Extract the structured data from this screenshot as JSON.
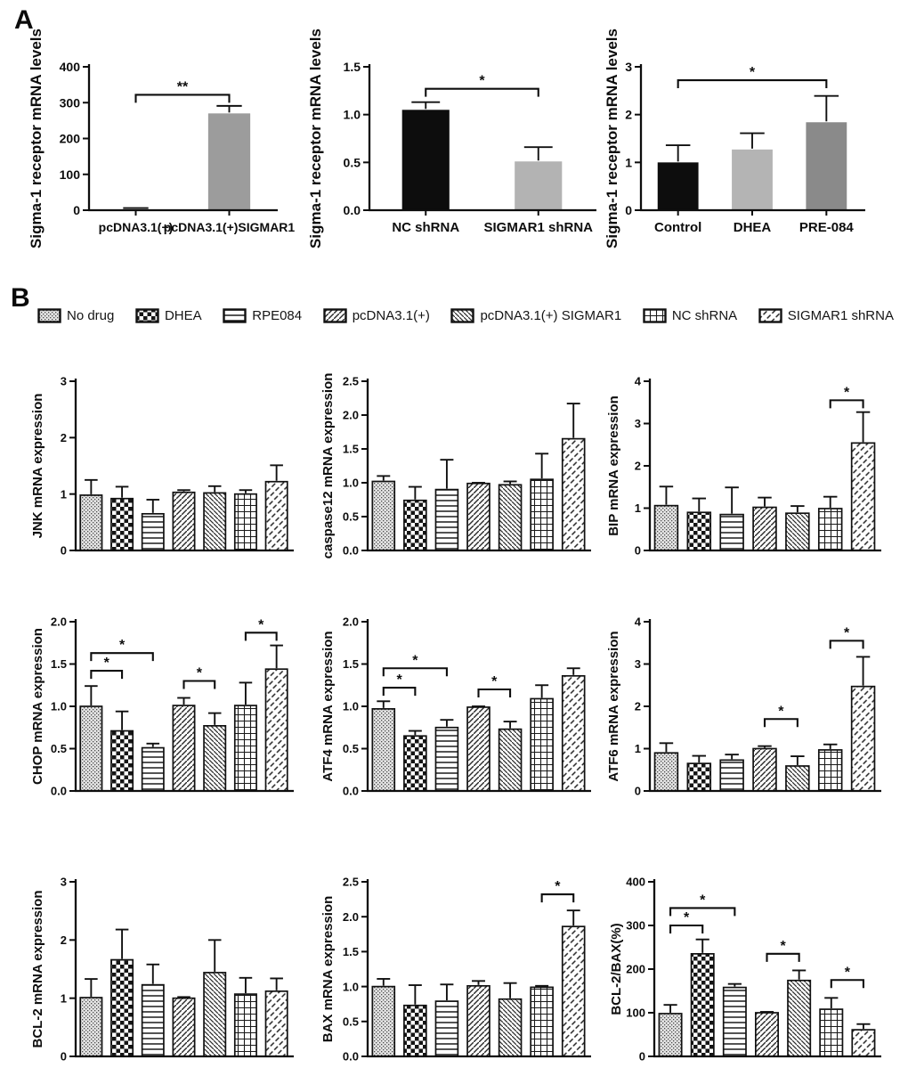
{
  "panels": {
    "a_label": "A",
    "b_label": "B"
  },
  "legend": {
    "items": [
      {
        "label": "No drug",
        "pattern": "stipple"
      },
      {
        "label": "DHEA",
        "pattern": "checker"
      },
      {
        "label": "RPE084",
        "pattern": "hlines"
      },
      {
        "label": "pcDNA3.1(+)",
        "pattern": "diagf"
      },
      {
        "label": "pcDNA3.1(+) SIGMAR1",
        "pattern": "diagb"
      },
      {
        "label": "NC shRNA",
        "pattern": "grid"
      },
      {
        "label": "SIGMAR1 shRNA",
        "pattern": "diagdash"
      }
    ]
  },
  "chart_data": [
    {
      "id": "a1",
      "panel": "A",
      "type": "bar",
      "title": "",
      "xlabel": "",
      "ylabel": "Sigma-1 receptor mRNA levels",
      "categories": [
        "pcDNA3.1(+)",
        "pcDNA3.1(+)SIGMAR1"
      ],
      "values": [
        2,
        270
      ],
      "errors": [
        4,
        21
      ],
      "fills": [
        "#141414",
        "#9c9c9c"
      ],
      "ylim": [
        0,
        400
      ],
      "yticks": [
        0,
        100,
        200,
        300,
        400
      ],
      "ytick_labels": [
        "0",
        "100",
        "200",
        "300",
        "400"
      ],
      "significance": [
        {
          "between": [
            0,
            1
          ],
          "y": 322,
          "label": "**"
        }
      ],
      "show_x_labels": true,
      "grid": false,
      "legend_position": "none"
    },
    {
      "id": "a2",
      "panel": "A",
      "type": "bar",
      "title": "",
      "xlabel": "",
      "ylabel": "Sigma-1 receptor mRNA levels",
      "categories": [
        "NC shRNA",
        "SIGMAR1 shRNA"
      ],
      "values": [
        1.05,
        0.51
      ],
      "errors": [
        0.08,
        0.15
      ],
      "fills": [
        "#0d0d0d",
        "#b3b3b3"
      ],
      "ylim": [
        0,
        1.5
      ],
      "yticks": [
        0,
        0.5,
        1.0,
        1.5
      ],
      "ytick_labels": [
        "0.0",
        "0.5",
        "1.0",
        "1.5"
      ],
      "significance": [
        {
          "between": [
            0,
            1
          ],
          "y": 1.27,
          "label": "*"
        }
      ],
      "show_x_labels": true,
      "grid": false,
      "legend_position": "none"
    },
    {
      "id": "a3",
      "panel": "A",
      "type": "bar",
      "title": "",
      "xlabel": "",
      "ylabel": "Sigma-1 receptor mRNA levels",
      "categories": [
        "Control",
        "DHEA",
        "PRE-084"
      ],
      "values": [
        1.0,
        1.27,
        1.84
      ],
      "errors": [
        0.36,
        0.34,
        0.55
      ],
      "fills": [
        "#0d0d0d",
        "#b4b4b4",
        "#8a8a8a"
      ],
      "ylim": [
        0,
        3
      ],
      "yticks": [
        0,
        1,
        2,
        3
      ],
      "ytick_labels": [
        "0",
        "1",
        "2",
        "3"
      ],
      "significance": [
        {
          "between": [
            0,
            2
          ],
          "y": 2.72,
          "label": "*"
        }
      ],
      "show_x_labels": true,
      "grid": false,
      "legend_position": "none"
    },
    {
      "id": "b1",
      "panel": "B",
      "type": "bar",
      "title": "",
      "xlabel": "",
      "ylabel": "JNK mRNA expression",
      "categories": [
        "No drug",
        "DHEA",
        "RPE084",
        "pcDNA3.1(+)",
        "pcDNA3.1(+) SIGMAR1",
        "NC shRNA",
        "SIGMAR1 shRNA"
      ],
      "values": [
        0.98,
        0.92,
        0.65,
        1.03,
        1.02,
        1.0,
        1.22
      ],
      "errors": [
        0.27,
        0.21,
        0.25,
        0.04,
        0.12,
        0.07,
        0.29
      ],
      "fills": [
        "stipple",
        "checker",
        "hlines",
        "diagf",
        "diagb",
        "grid",
        "diagdash"
      ],
      "ylim": [
        0,
        3
      ],
      "yticks": [
        0,
        1,
        2,
        3
      ],
      "ytick_labels": [
        "0",
        "1",
        "2",
        "3"
      ],
      "significance": [],
      "show_x_labels": false,
      "grid": false,
      "legend_position": "top-shared"
    },
    {
      "id": "b2",
      "panel": "B",
      "type": "bar",
      "title": "",
      "xlabel": "",
      "ylabel": "caspase12 mRNA expression",
      "categories": [
        "No drug",
        "DHEA",
        "RPE084",
        "pcDNA3.1(+)",
        "pcDNA3.1(+) SIGMAR1",
        "NC shRNA",
        "SIGMAR1 shRNA"
      ],
      "values": [
        1.02,
        0.74,
        0.9,
        0.99,
        0.97,
        1.05,
        1.65
      ],
      "errors": [
        0.08,
        0.2,
        0.44,
        0.01,
        0.05,
        0.38,
        0.52
      ],
      "fills": [
        "stipple",
        "checker",
        "hlines",
        "diagf",
        "diagb",
        "grid",
        "diagdash"
      ],
      "ylim": [
        0,
        2.5
      ],
      "yticks": [
        0,
        0.5,
        1.0,
        1.5,
        2.0,
        2.5
      ],
      "ytick_labels": [
        "0.0",
        "0.5",
        "1.0",
        "1.5",
        "2.0",
        "2.5"
      ],
      "significance": [],
      "show_x_labels": false,
      "grid": false,
      "legend_position": "top-shared"
    },
    {
      "id": "b3",
      "panel": "B",
      "type": "bar",
      "title": "",
      "xlabel": "",
      "ylabel": "BIP mRNA expression",
      "categories": [
        "No drug",
        "DHEA",
        "RPE084",
        "pcDNA3.1(+)",
        "pcDNA3.1(+) SIGMAR1",
        "NC shRNA",
        "SIGMAR1 shRNA"
      ],
      "values": [
        1.06,
        0.9,
        0.85,
        1.02,
        0.88,
        0.99,
        2.54
      ],
      "errors": [
        0.45,
        0.33,
        0.64,
        0.23,
        0.17,
        0.28,
        0.73
      ],
      "fills": [
        "stipple",
        "checker",
        "hlines",
        "diagf",
        "diagb",
        "grid",
        "diagdash"
      ],
      "ylim": [
        0,
        4
      ],
      "yticks": [
        0,
        1,
        2,
        3,
        4
      ],
      "ytick_labels": [
        "0",
        "1",
        "2",
        "3",
        "4"
      ],
      "significance": [
        {
          "between": [
            5,
            6
          ],
          "y": 3.55,
          "label": "*"
        }
      ],
      "show_x_labels": false,
      "grid": false,
      "legend_position": "top-shared"
    },
    {
      "id": "b4",
      "panel": "B",
      "type": "bar",
      "title": "",
      "xlabel": "",
      "ylabel": "CHOP mRNA expression",
      "categories": [
        "No drug",
        "DHEA",
        "RPE084",
        "pcDNA3.1(+)",
        "pcDNA3.1(+) SIGMAR1",
        "NC shRNA",
        "SIGMAR1 shRNA"
      ],
      "values": [
        1.0,
        0.71,
        0.51,
        1.01,
        0.77,
        1.01,
        1.44
      ],
      "errors": [
        0.24,
        0.23,
        0.05,
        0.09,
        0.15,
        0.27,
        0.28
      ],
      "fills": [
        "stipple",
        "checker",
        "hlines",
        "diagf",
        "diagb",
        "grid",
        "diagdash"
      ],
      "ylim": [
        0,
        2
      ],
      "yticks": [
        0,
        0.5,
        1.0,
        1.5,
        2.0
      ],
      "ytick_labels": [
        "0.0",
        "0.5",
        "1.0",
        "1.5",
        "2.0"
      ],
      "significance": [
        {
          "between": [
            0,
            1
          ],
          "y": 1.42,
          "label": "*"
        },
        {
          "between": [
            0,
            2
          ],
          "y": 1.63,
          "label": "*"
        },
        {
          "between": [
            3,
            4
          ],
          "y": 1.3,
          "label": "*"
        },
        {
          "between": [
            5,
            6
          ],
          "y": 1.87,
          "label": "*"
        }
      ],
      "show_x_labels": false,
      "grid": false,
      "legend_position": "top-shared"
    },
    {
      "id": "b5",
      "panel": "B",
      "type": "bar",
      "title": "",
      "xlabel": "",
      "ylabel": "ATF4 mRNA expression",
      "categories": [
        "No drug",
        "DHEA",
        "RPE084",
        "pcDNA3.1(+)",
        "pcDNA3.1(+) SIGMAR1",
        "NC shRNA",
        "SIGMAR1 shRNA"
      ],
      "values": [
        0.97,
        0.65,
        0.75,
        0.99,
        0.73,
        1.09,
        1.36
      ],
      "errors": [
        0.09,
        0.06,
        0.09,
        0.01,
        0.09,
        0.16,
        0.09
      ],
      "fills": [
        "stipple",
        "checker",
        "hlines",
        "diagf",
        "diagb",
        "grid",
        "diagdash"
      ],
      "ylim": [
        0,
        2
      ],
      "yticks": [
        0,
        0.5,
        1.0,
        1.5,
        2.0
      ],
      "ytick_labels": [
        "0.0",
        "0.5",
        "1.0",
        "1.5",
        "2.0"
      ],
      "significance": [
        {
          "between": [
            0,
            1
          ],
          "y": 1.22,
          "label": "*"
        },
        {
          "between": [
            0,
            2
          ],
          "y": 1.45,
          "label": "*"
        },
        {
          "between": [
            3,
            4
          ],
          "y": 1.2,
          "label": "*"
        }
      ],
      "show_x_labels": false,
      "grid": false,
      "legend_position": "top-shared"
    },
    {
      "id": "b6",
      "panel": "B",
      "type": "bar",
      "title": "",
      "xlabel": "",
      "ylabel": "ATF6 mRNA expression",
      "categories": [
        "No drug",
        "DHEA",
        "RPE084",
        "pcDNA3.1(+)",
        "pcDNA3.1(+) SIGMAR1",
        "NC shRNA",
        "SIGMAR1 shRNA"
      ],
      "values": [
        0.9,
        0.65,
        0.73,
        1.0,
        0.59,
        0.97,
        2.47
      ],
      "errors": [
        0.23,
        0.18,
        0.13,
        0.06,
        0.23,
        0.13,
        0.7
      ],
      "fills": [
        "stipple",
        "checker",
        "hlines",
        "diagf",
        "diagb",
        "grid",
        "diagdash"
      ],
      "ylim": [
        0,
        4
      ],
      "yticks": [
        0,
        1,
        2,
        3,
        4
      ],
      "ytick_labels": [
        "0",
        "1",
        "2",
        "3",
        "4"
      ],
      "significance": [
        {
          "between": [
            3,
            4
          ],
          "y": 1.7,
          "label": "*"
        },
        {
          "between": [
            5,
            6
          ],
          "y": 3.55,
          "label": "*"
        }
      ],
      "show_x_labels": false,
      "grid": false,
      "legend_position": "top-shared"
    },
    {
      "id": "b7",
      "panel": "B",
      "type": "bar",
      "title": "",
      "xlabel": "",
      "ylabel": "BCL-2 mRNA expression",
      "categories": [
        "No drug",
        "DHEA",
        "RPE084",
        "pcDNA3.1(+)",
        "pcDNA3.1(+) SIGMAR1",
        "NC shRNA",
        "SIGMAR1 shRNA"
      ],
      "values": [
        1.01,
        1.66,
        1.23,
        1.0,
        1.44,
        1.07,
        1.12
      ],
      "errors": [
        0.32,
        0.52,
        0.35,
        0.02,
        0.56,
        0.28,
        0.22
      ],
      "fills": [
        "stipple",
        "checker",
        "hlines",
        "diagf",
        "diagb",
        "grid",
        "diagdash"
      ],
      "ylim": [
        0,
        3
      ],
      "yticks": [
        0,
        1,
        2,
        3
      ],
      "ytick_labels": [
        "0",
        "1",
        "2",
        "3"
      ],
      "significance": [],
      "show_x_labels": false,
      "grid": false,
      "legend_position": "top-shared"
    },
    {
      "id": "b8",
      "panel": "B",
      "type": "bar",
      "title": "",
      "xlabel": "",
      "ylabel": "BAX mRNA expression",
      "categories": [
        "No drug",
        "DHEA",
        "RPE084",
        "pcDNA3.1(+)",
        "pcDNA3.1(+) SIGMAR1",
        "NC shRNA",
        "SIGMAR1 shRNA"
      ],
      "values": [
        1.0,
        0.73,
        0.79,
        1.01,
        0.82,
        0.99,
        1.86
      ],
      "errors": [
        0.11,
        0.29,
        0.24,
        0.07,
        0.23,
        0.02,
        0.23
      ],
      "fills": [
        "stipple",
        "checker",
        "hlines",
        "diagf",
        "diagb",
        "grid",
        "diagdash"
      ],
      "ylim": [
        0,
        2.5
      ],
      "yticks": [
        0,
        0.5,
        1.0,
        1.5,
        2.0,
        2.5
      ],
      "ytick_labels": [
        "0.0",
        "0.5",
        "1.0",
        "1.5",
        "2.0",
        "2.5"
      ],
      "significance": [
        {
          "between": [
            5,
            6
          ],
          "y": 2.32,
          "label": "*"
        }
      ],
      "show_x_labels": false,
      "grid": false,
      "legend_position": "top-shared"
    },
    {
      "id": "b9",
      "panel": "B",
      "type": "bar",
      "title": "",
      "xlabel": "",
      "ylabel": "BCL-2/BAX(%)",
      "categories": [
        "No drug",
        "DHEA",
        "RPE084",
        "pcDNA3.1(+)",
        "pcDNA3.1(+) SIGMAR1",
        "NC shRNA",
        "SIGMAR1 shRNA"
      ],
      "values": [
        98,
        235,
        158,
        100,
        174,
        108,
        61
      ],
      "errors": [
        20,
        33,
        8,
        2,
        23,
        26,
        13
      ],
      "fills": [
        "stipple",
        "checker",
        "hlines",
        "diagf",
        "diagb",
        "grid",
        "diagdash"
      ],
      "ylim": [
        0,
        400
      ],
      "yticks": [
        0,
        100,
        200,
        300,
        400
      ],
      "ytick_labels": [
        "0",
        "100",
        "200",
        "300",
        "400"
      ],
      "significance": [
        {
          "between": [
            0,
            1
          ],
          "y": 300,
          "label": "*"
        },
        {
          "between": [
            0,
            2
          ],
          "y": 340,
          "label": "*"
        },
        {
          "between": [
            3,
            4
          ],
          "y": 235,
          "label": "*"
        },
        {
          "between": [
            5,
            6
          ],
          "y": 175,
          "label": "*"
        }
      ],
      "show_x_labels": false,
      "grid": false,
      "legend_position": "top-shared"
    }
  ]
}
